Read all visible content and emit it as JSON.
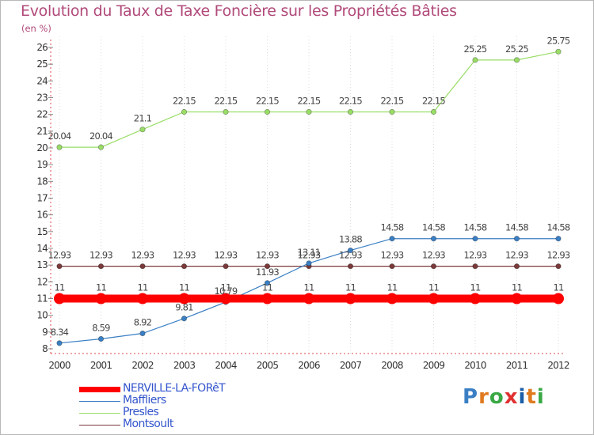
{
  "chart_data": {
    "type": "line",
    "title": "Evolution du Taux de Taxe Foncière sur les Propriétés Bâties",
    "unit_label": "(en %)",
    "x": [
      "2000",
      "2001",
      "2002",
      "2003",
      "2004",
      "2005",
      "2006",
      "2007",
      "2008",
      "2009",
      "2010",
      "2011",
      "2012"
    ],
    "ylim": [
      8,
      26
    ],
    "yticks": [
      "8",
      "9",
      "10",
      "11",
      "12",
      "13",
      "14",
      "15",
      "16",
      "17",
      "18",
      "19",
      "20",
      "21",
      "22",
      "23",
      "24",
      "25",
      "26"
    ],
    "series": [
      {
        "name": "NERVILLE-LA-FORêT",
        "color": "#ff0000",
        "values": [
          11,
          11,
          11,
          11,
          11,
          11,
          11,
          11,
          11,
          11,
          11,
          11,
          11
        ],
        "labels": [
          "11",
          "11",
          "11",
          "11",
          "11",
          "11",
          "11",
          "11",
          "11",
          "11",
          "11",
          "11",
          "11"
        ]
      },
      {
        "name": "Maffliers",
        "color": "#3a7fc4",
        "values": [
          8.34,
          8.59,
          8.92,
          9.81,
          10.79,
          11.93,
          13.11,
          13.88,
          14.58,
          14.58,
          14.58,
          14.58,
          14.58
        ],
        "labels": [
          "8.34",
          "8.59",
          "8.92",
          "9.81",
          "10.79",
          "11.93",
          "13.11",
          "13.88",
          "14.58",
          "14.58",
          "14.58",
          "14.58",
          "14.58"
        ]
      },
      {
        "name": "Presles",
        "color": "#99dd66",
        "values": [
          20.04,
          20.04,
          21.1,
          22.15,
          22.15,
          22.15,
          22.15,
          22.15,
          22.15,
          22.15,
          25.25,
          25.25,
          25.75
        ],
        "labels": [
          "20.04",
          "20.04",
          "21.1",
          "22.15",
          "22.15",
          "22.15",
          "22.15",
          "22.15",
          "22.15",
          "22.15",
          "25.25",
          "25.25",
          "25.75"
        ]
      },
      {
        "name": "Montsoult",
        "color": "#7a3a3a",
        "values": [
          12.93,
          12.93,
          12.93,
          12.93,
          12.93,
          12.93,
          12.93,
          12.93,
          12.93,
          12.93,
          12.93,
          12.93,
          12.93
        ],
        "labels": [
          "12.93",
          "12.93",
          "12.93",
          "12.93",
          "12.93",
          "12.93",
          "12.93",
          "12.93",
          "12.93",
          "12.93",
          "12.93",
          "12.93",
          "12.93"
        ]
      }
    ]
  },
  "logo": {
    "letters": [
      "P",
      "r",
      "o",
      "x",
      "i",
      "t",
      "i"
    ],
    "colors": [
      "#3a7fc4",
      "#e07a1f",
      "#39a845",
      "#e03030",
      "#1a5ea8",
      "#e07a1f",
      "#39a845"
    ]
  }
}
